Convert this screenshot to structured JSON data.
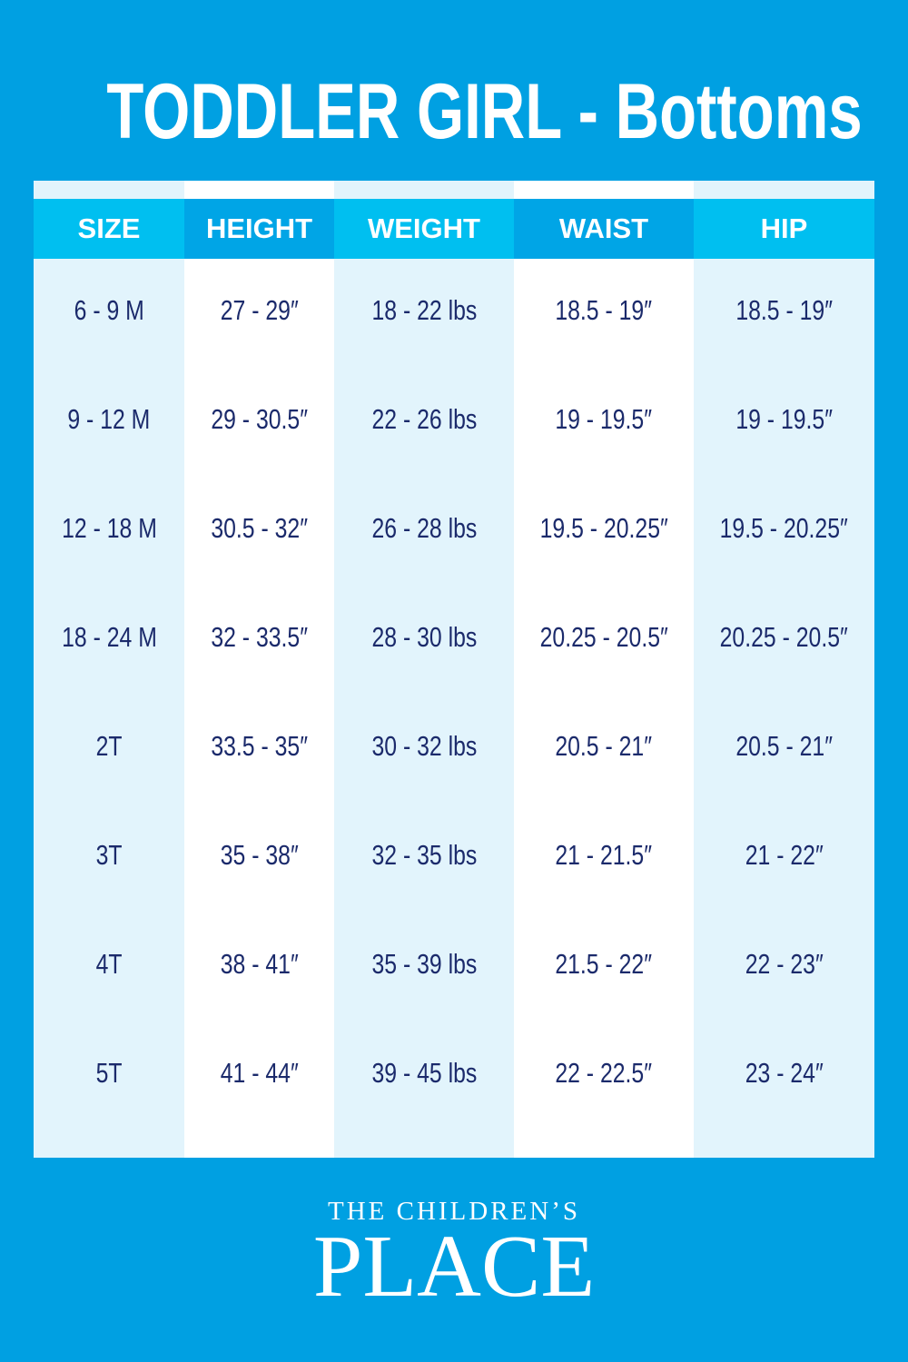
{
  "header": {
    "title": "TODDLER GIRL - Bottoms"
  },
  "table": {
    "headers": [
      "SIZE",
      "HEIGHT",
      "WEIGHT",
      "WAIST",
      "HIP"
    ],
    "rows": [
      [
        "6 - 9 M",
        "27 - 29″",
        "18 - 22 lbs",
        "18.5 - 19″",
        "18.5 - 19″"
      ],
      [
        "9 - 12 M",
        "29 - 30.5″",
        "22 - 26 lbs",
        "19 - 19.5″",
        "19 - 19.5″"
      ],
      [
        "12  - 18 M",
        "30.5 - 32″",
        "26 - 28 lbs",
        "19.5 - 20.25″",
        "19.5 - 20.25″"
      ],
      [
        "18 - 24 M",
        "32 - 33.5″",
        "28 - 30 lbs",
        "20.25 - 20.5″",
        "20.25 - 20.5″"
      ],
      [
        "2T",
        "33.5 - 35″",
        "30 - 32 lbs",
        "20.5 - 21″",
        "20.5 - 21″"
      ],
      [
        "3T",
        "35 - 38″",
        "32 - 35 lbs",
        "21 - 21.5″",
        "21 - 22″"
      ],
      [
        "4T",
        "38 - 41″",
        "35 - 39 lbs",
        "21.5 - 22″",
        "22 - 23″"
      ],
      [
        "5T",
        "41 - 44″",
        "39 - 45 lbs",
        "22 - 22.5″",
        "23 - 24″"
      ]
    ]
  },
  "footer": {
    "brand_line1": "THE CHILDREN’S",
    "brand_line2": "PLACE"
  }
}
